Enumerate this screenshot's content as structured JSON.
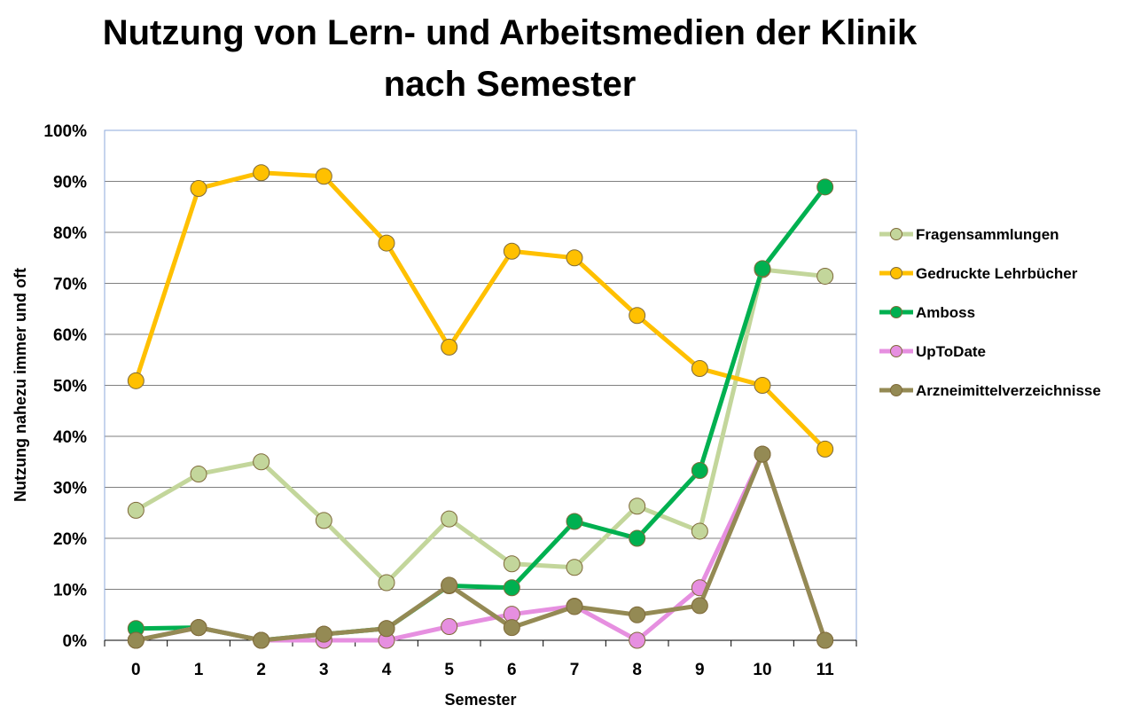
{
  "chart_data": {
    "type": "line",
    "title_line1": "Nutzung von Lern- und Arbeitsmedien der Klinik",
    "title_line2": "nach Semester",
    "xlabel": "Semester",
    "ylabel": "Nutzung nahezu immer und oft",
    "x": [
      "0",
      "1",
      "2",
      "3",
      "4",
      "5",
      "6",
      "7",
      "8",
      "9",
      "10",
      "11"
    ],
    "ylim": [
      0,
      100
    ],
    "yticks": [
      "0%",
      "10%",
      "20%",
      "30%",
      "40%",
      "50%",
      "60%",
      "70%",
      "80%",
      "90%",
      "100%"
    ],
    "grid": true,
    "legend_position": "right",
    "series": [
      {
        "name": "Fragensammlungen",
        "color": "#c3d69b",
        "values": [
          25.5,
          32.6,
          35.0,
          23.5,
          11.3,
          23.8,
          15.0,
          14.3,
          26.3,
          21.4,
          72.7,
          71.4
        ]
      },
      {
        "name": "Gedruckte Lehrbücher",
        "color": "#ffc000",
        "values": [
          50.9,
          88.6,
          91.7,
          91.0,
          77.9,
          57.5,
          76.3,
          75.0,
          63.7,
          53.3,
          50.0,
          37.5
        ]
      },
      {
        "name": "Amboss",
        "color": "#00b050",
        "values": [
          2.3,
          2.5,
          0.0,
          1.2,
          2.3,
          10.7,
          10.3,
          23.3,
          20.0,
          33.3,
          72.9,
          88.9
        ]
      },
      {
        "name": "UpToDate",
        "color": "#e68fe0",
        "values": [
          0.0,
          2.5,
          0.0,
          0.0,
          0.0,
          2.7,
          5.1,
          6.7,
          0.0,
          10.3,
          36.5,
          0.0
        ]
      },
      {
        "name": "Arzneimittelverzeichnisse",
        "color": "#948a54",
        "values": [
          0.0,
          2.5,
          0.0,
          1.2,
          2.3,
          10.8,
          2.5,
          6.6,
          5.0,
          6.8,
          36.5,
          0.0
        ]
      }
    ]
  }
}
